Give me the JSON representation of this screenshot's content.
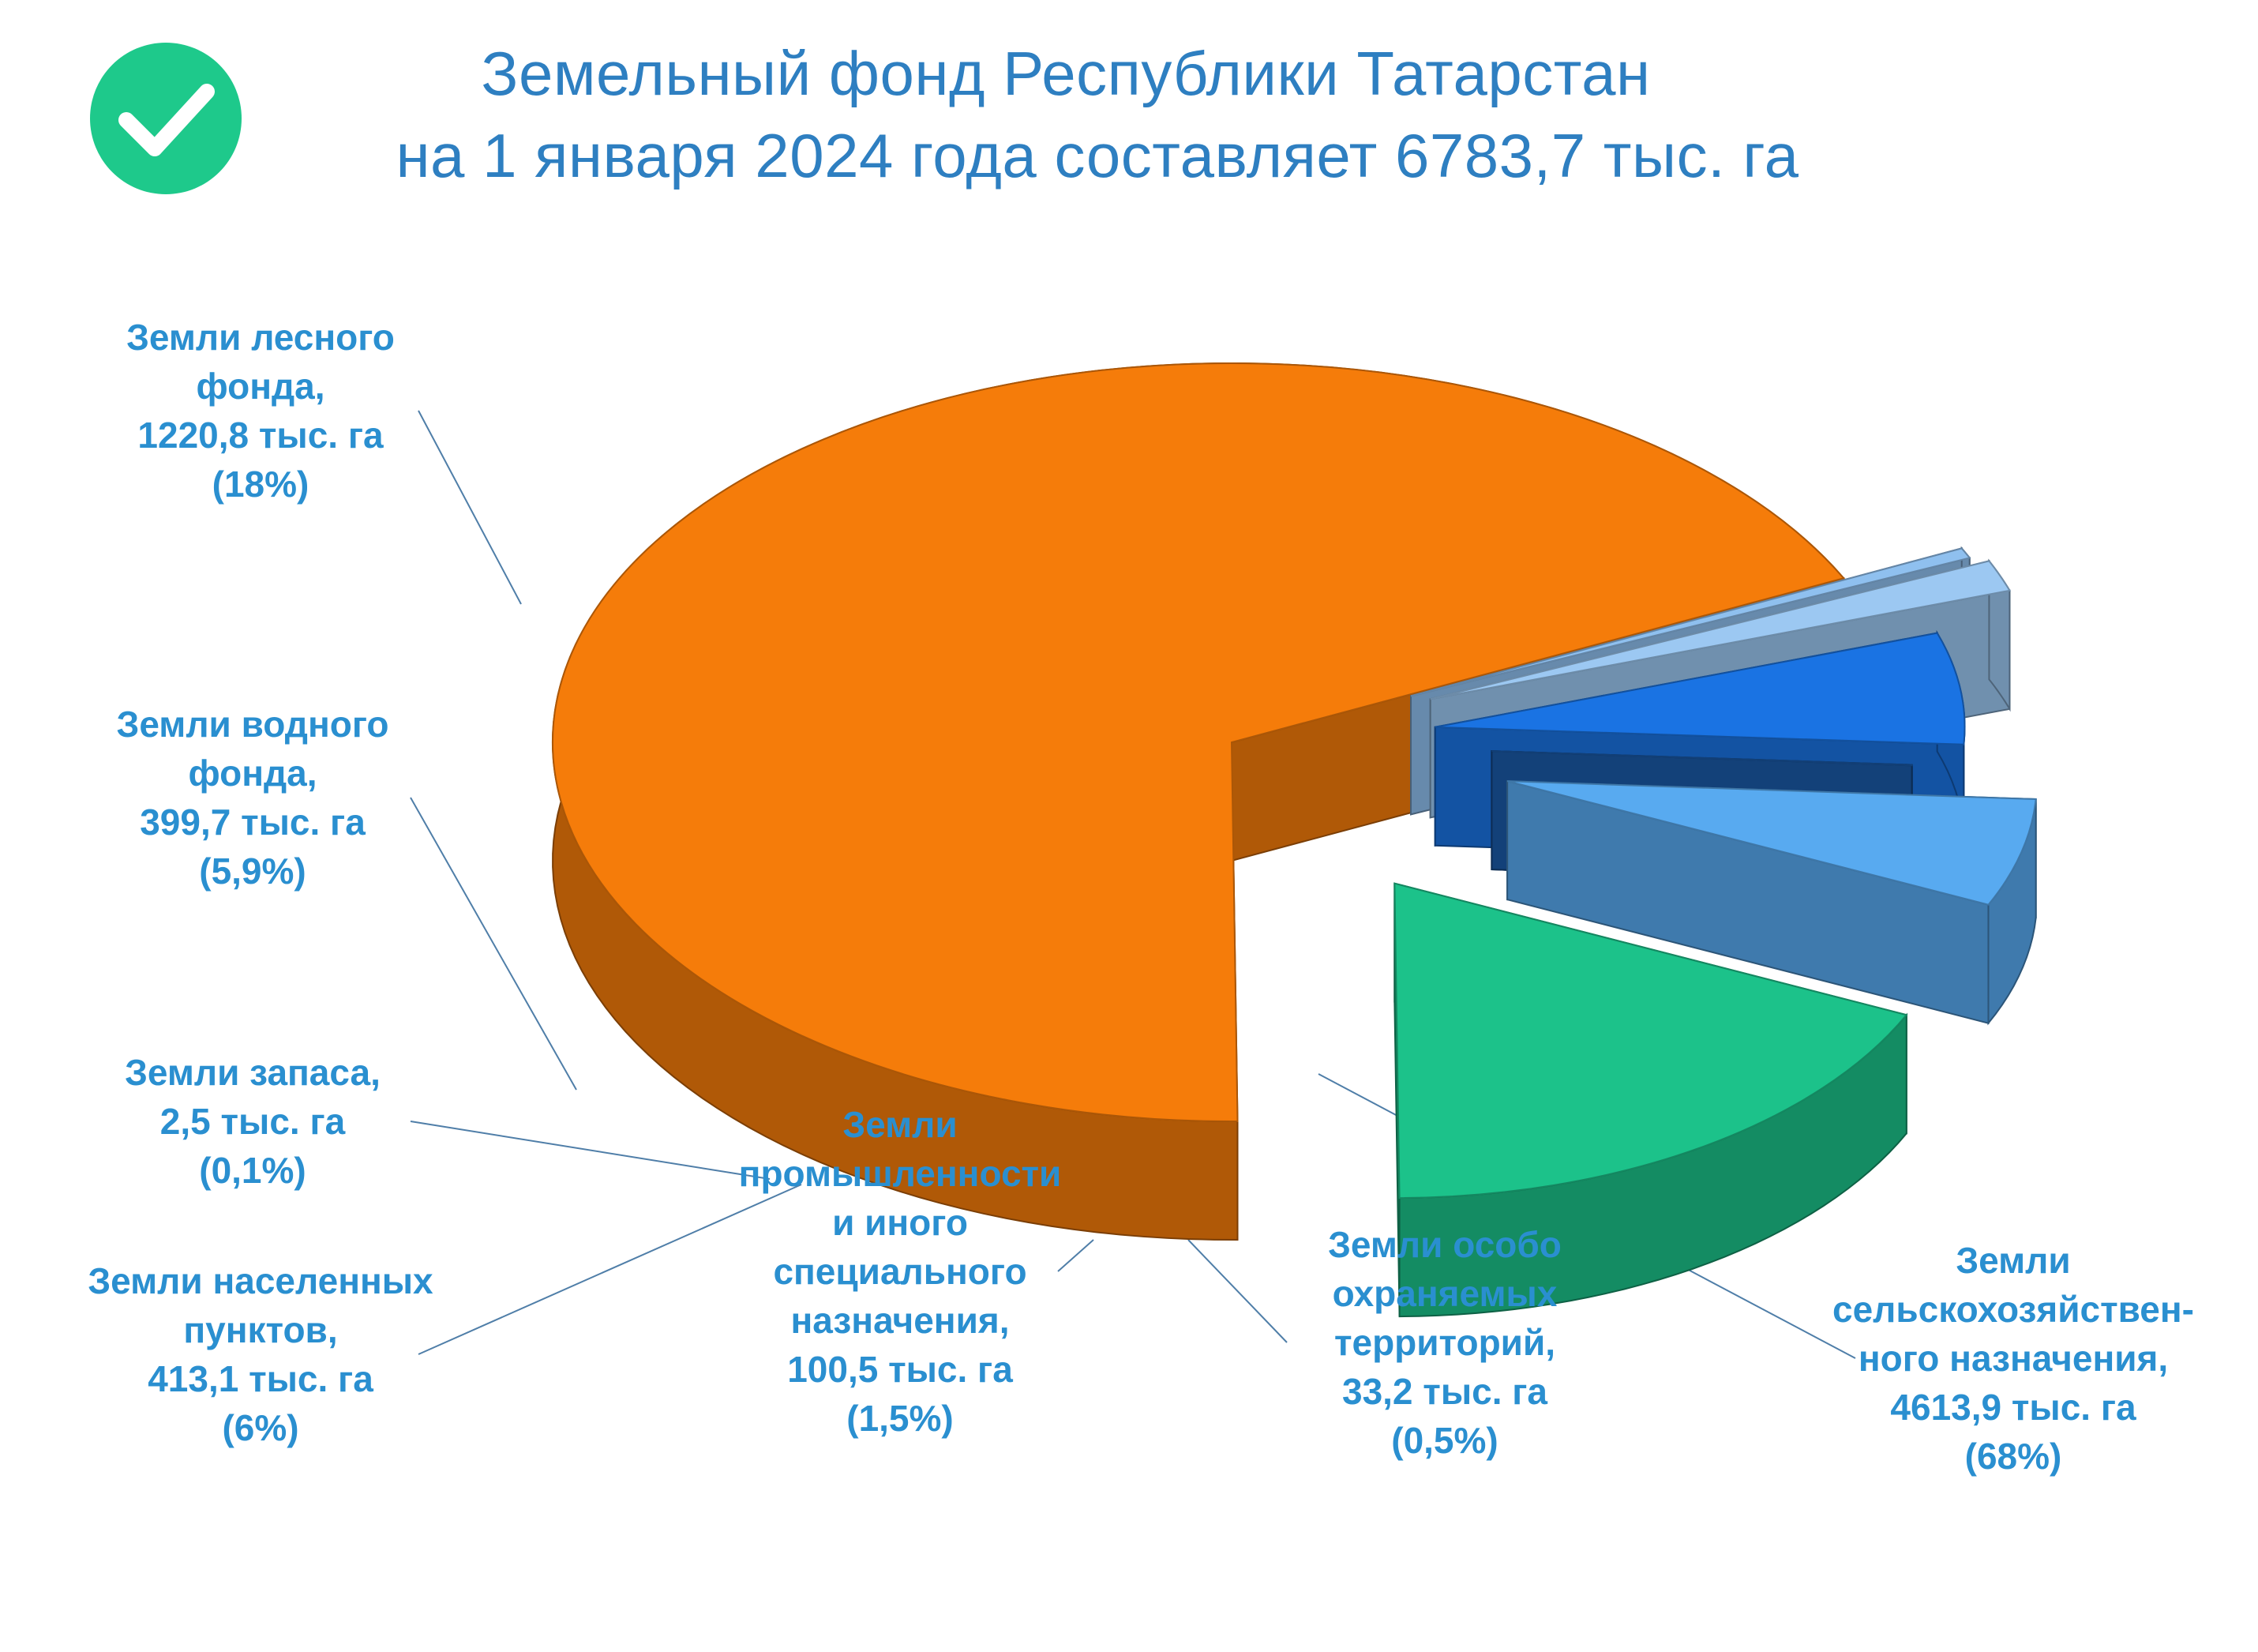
{
  "title": {
    "line1": "Земельный фонд Республики Татарстан",
    "line2": "на 1 января 2024 года составляет  6783,7 тыс. га"
  },
  "icon": "check-circle-icon",
  "colors": {
    "title": "#2e7fc1",
    "label": "#2a8fd0",
    "check": "#1ec98b"
  },
  "chart_data": {
    "type": "pie",
    "title": "Земельный фонд Республики Татарстан на 1 января 2024 года составляет 6783,7 тыс. га",
    "unit": "тыс. га",
    "total": 6783.7,
    "slices": [
      {
        "id": "agri",
        "value": 4613.9,
        "percent": 68,
        "color": "#f57c0a",
        "label_lines": [
          "Земли",
          "сельскохозяйствен-",
          "ного назначения,",
          "4613,9 тыс. га",
          "(68%)"
        ]
      },
      {
        "id": "protected",
        "value": 33.2,
        "percent": 0.5,
        "color": "#8fc0ef",
        "label_lines": [
          "Земли особо",
          "охраняемых",
          "территорий,",
          "33,2 тыс. га",
          "(0,5%)"
        ]
      },
      {
        "id": "industry",
        "value": 100.5,
        "percent": 1.5,
        "color": "#9cc8f2",
        "label_lines": [
          "Земли",
          "промышленности",
          "и иного",
          "специального",
          "назначения,",
          "100,5 тыс. га",
          "(1,5%)"
        ]
      },
      {
        "id": "settlements",
        "value": 413.1,
        "percent": 6,
        "color": "#1a73e3",
        "label_lines": [
          "Земли населенных",
          "пунктов,",
          "413,1 тыс. га",
          "(6%)"
        ]
      },
      {
        "id": "reserve",
        "value": 2.5,
        "percent": 0.1,
        "color": "#1a5aa8",
        "label_lines": [
          "Земли запаса,",
          "2,5 тыс. га",
          "(0,1%)"
        ]
      },
      {
        "id": "water",
        "value": 399.7,
        "percent": 5.9,
        "color": "#58aaf0",
        "label_lines": [
          "Земли водного",
          "фонда,",
          "399,7 тыс. га",
          "(5,9%)"
        ]
      },
      {
        "id": "forest",
        "value": 1220.8,
        "percent": 18,
        "color": "#1cc28a",
        "label_lines": [
          "Земли лесного",
          "фонда,",
          "1220,8 тыс. га",
          "(18%)"
        ]
      }
    ]
  }
}
